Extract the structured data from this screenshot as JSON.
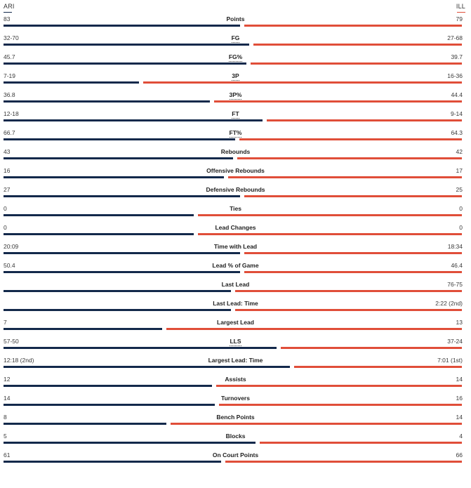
{
  "teams": {
    "left": "ARI",
    "right": "ILL"
  },
  "colors": {
    "left": "#13294b",
    "right": "#e04e39"
  },
  "stats": [
    {
      "label": "Points",
      "left": "83",
      "right": "79",
      "underline": false,
      "share": 0.52
    },
    {
      "label": "FG",
      "left": "32-70",
      "right": "27-68",
      "underline": true,
      "share": 0.54
    },
    {
      "label": "FG%",
      "left": "45.7",
      "right": "39.7",
      "underline": true,
      "share": 0.535
    },
    {
      "label": "3P",
      "left": "7-19",
      "right": "16-36",
      "underline": true,
      "share": 0.3
    },
    {
      "label": "3P%",
      "left": "36.8",
      "right": "44.4",
      "underline": true,
      "share": 0.455
    },
    {
      "label": "FT",
      "left": "12-18",
      "right": "9-14",
      "underline": true,
      "share": 0.57
    },
    {
      "label": "FT%",
      "left": "66.7",
      "right": "64.3",
      "underline": true,
      "share": 0.51
    },
    {
      "label": "Rebounds",
      "left": "43",
      "right": "42",
      "underline": false,
      "share": 0.505
    },
    {
      "label": "Offensive Rebounds",
      "left": "16",
      "right": "17",
      "underline": false,
      "share": 0.485
    },
    {
      "label": "Defensive Rebounds",
      "left": "27",
      "right": "25",
      "underline": false,
      "share": 0.52
    },
    {
      "label": "Ties",
      "left": "0",
      "right": "0",
      "underline": false,
      "share": 0.42
    },
    {
      "label": "Lead Changes",
      "left": "0",
      "right": "0",
      "underline": false,
      "share": 0.42
    },
    {
      "label": "Time with Lead",
      "left": "20:09",
      "right": "18:34",
      "underline": false,
      "share": 0.52
    },
    {
      "label": "Lead % of Game",
      "left": "50.4",
      "right": "46.4",
      "underline": false,
      "share": 0.52
    },
    {
      "label": "Last Lead",
      "left": "",
      "right": "76-75",
      "underline": false,
      "share": 0.5
    },
    {
      "label": "Last Lead: Time",
      "left": "",
      "right": "2:22 (2nd)",
      "underline": false,
      "share": 0.5
    },
    {
      "label": "Largest Lead",
      "left": "7",
      "right": "13",
      "underline": false,
      "share": 0.35
    },
    {
      "label": "LLS",
      "left": "57-50",
      "right": "37-24",
      "underline": true,
      "share": 0.6
    },
    {
      "label": "Largest Lead: Time",
      "left": "12:18 (2nd)",
      "right": "7:01 (1st)",
      "underline": false,
      "share": 0.63
    },
    {
      "label": "Assists",
      "left": "12",
      "right": "14",
      "underline": false,
      "share": 0.46
    },
    {
      "label": "Turnovers",
      "left": "14",
      "right": "16",
      "underline": false,
      "share": 0.465
    },
    {
      "label": "Bench Points",
      "left": "8",
      "right": "14",
      "underline": false,
      "share": 0.36
    },
    {
      "label": "Blocks",
      "left": "5",
      "right": "4",
      "underline": false,
      "share": 0.555
    },
    {
      "label": "On Court Points",
      "left": "61",
      "right": "66",
      "underline": false,
      "share": 0.48
    }
  ]
}
